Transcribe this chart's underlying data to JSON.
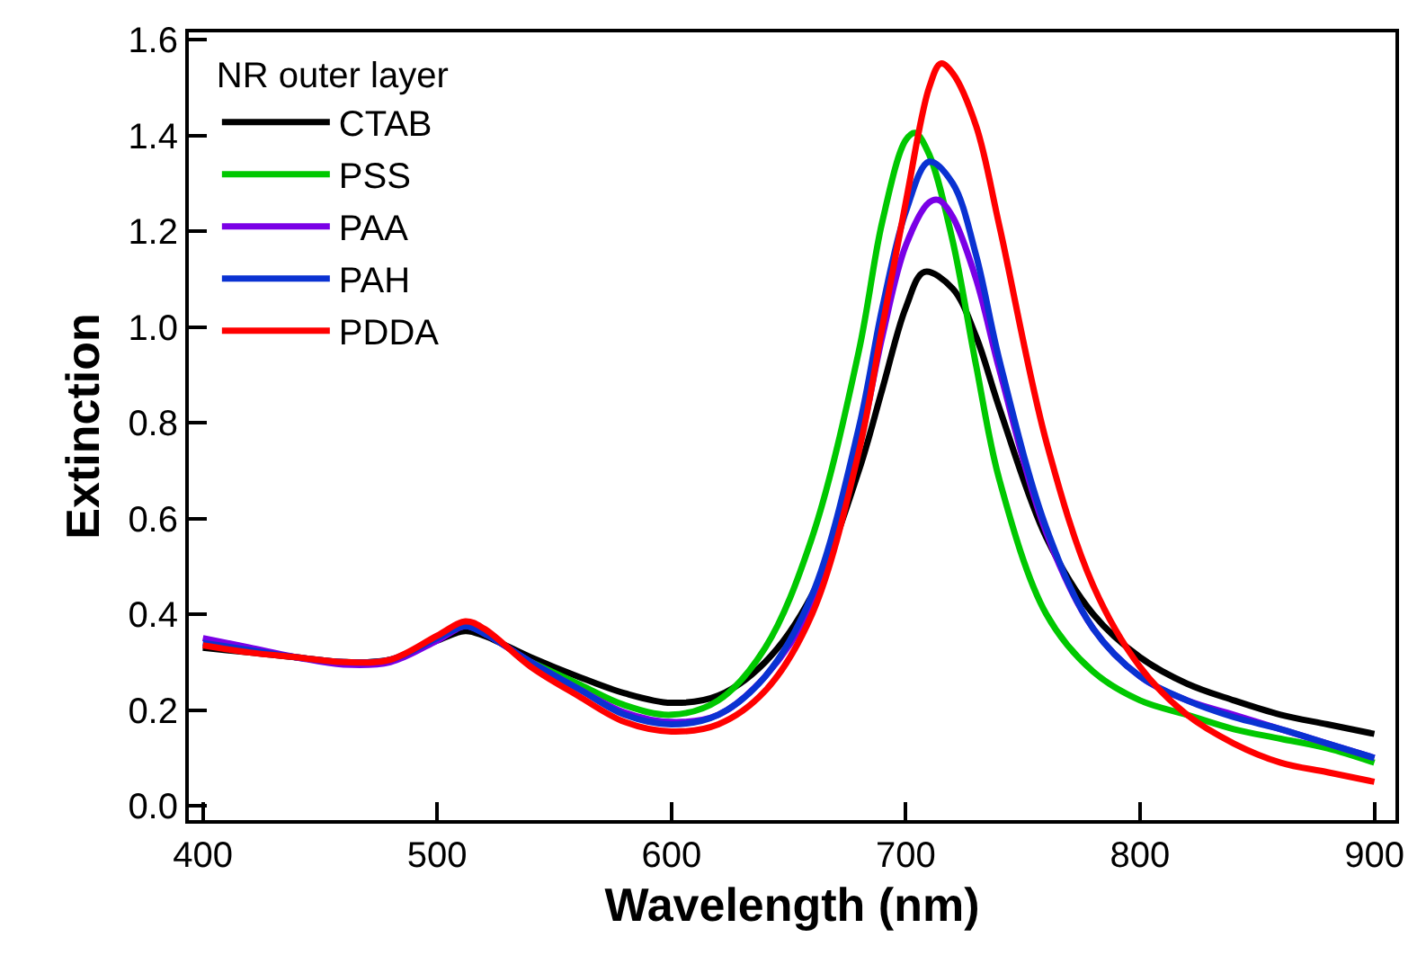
{
  "chart_data": {
    "type": "line",
    "xlabel": "Wavelength (nm)",
    "ylabel": "Extinction",
    "legend_title": "NR outer layer",
    "legend": "top left",
    "marker": "none",
    "line_style": "solid",
    "xlim": [
      394,
      909
    ],
    "xticks": [
      400,
      500,
      600,
      700,
      800,
      900
    ],
    "ylim": [
      -0.03,
      1.615
    ],
    "yticks": [
      {
        "value": 0,
        "label": "0.0"
      },
      0.2,
      0.4,
      0.6,
      0.8,
      {
        "value": 1,
        "label": "1.0"
      },
      1.2,
      1.4,
      1.6
    ],
    "series": [
      {
        "name": "CTAB",
        "color": "#000000",
        "x": [
          400,
          420,
          440,
          460,
          480,
          500,
          512,
          520,
          540,
          560,
          580,
          600,
          620,
          640,
          660,
          680,
          690,
          700,
          708,
          720,
          730,
          740,
          760,
          780,
          800,
          820,
          840,
          860,
          880,
          900
        ],
        "values": [
          0.33,
          0.32,
          0.31,
          0.3,
          0.305,
          0.345,
          0.365,
          0.355,
          0.31,
          0.27,
          0.235,
          0.215,
          0.23,
          0.3,
          0.44,
          0.7,
          0.87,
          1.04,
          1.115,
          1.08,
          0.98,
          0.83,
          0.56,
          0.4,
          0.31,
          0.255,
          0.22,
          0.19,
          0.17,
          0.15
        ]
      },
      {
        "name": "PSS",
        "color": "#00c800",
        "x": [
          540,
          560,
          580,
          600,
          620,
          640,
          660,
          680,
          690,
          700,
          704,
          710,
          720,
          730,
          740,
          760,
          780,
          800,
          820,
          840,
          860,
          880,
          900
        ],
        "values": [
          0.3,
          0.255,
          0.21,
          0.19,
          0.22,
          0.33,
          0.56,
          0.95,
          1.22,
          1.39,
          1.405,
          1.36,
          1.18,
          0.92,
          0.68,
          0.4,
          0.28,
          0.22,
          0.19,
          0.16,
          0.14,
          0.12,
          0.09
        ]
      },
      {
        "name": "PAA",
        "color": "#7a00e6",
        "x": [
          400,
          420,
          440,
          460,
          480,
          500,
          512,
          520,
          540,
          560,
          580,
          600,
          620,
          640,
          660,
          680,
          690,
          700,
          710,
          714,
          720,
          730,
          740,
          760,
          780,
          800,
          820,
          840,
          860,
          880,
          900
        ],
        "values": [
          0.35,
          0.33,
          0.31,
          0.295,
          0.3,
          0.345,
          0.375,
          0.36,
          0.3,
          0.245,
          0.195,
          0.175,
          0.19,
          0.27,
          0.42,
          0.75,
          0.98,
          1.17,
          1.26,
          1.265,
          1.23,
          1.1,
          0.91,
          0.57,
          0.37,
          0.27,
          0.22,
          0.19,
          0.16,
          0.13,
          0.1
        ]
      },
      {
        "name": "PAH",
        "color": "#0a32d2",
        "x": [
          400,
          420,
          440,
          460,
          480,
          500,
          512,
          520,
          540,
          560,
          580,
          600,
          620,
          640,
          660,
          680,
          690,
          700,
          710,
          720,
          730,
          740,
          760,
          780,
          800,
          820,
          840,
          860,
          880,
          900
        ],
        "values": [
          0.34,
          0.325,
          0.31,
          0.3,
          0.305,
          0.35,
          0.375,
          0.36,
          0.3,
          0.245,
          0.19,
          0.17,
          0.19,
          0.27,
          0.44,
          0.79,
          1.04,
          1.24,
          1.345,
          1.3,
          1.15,
          0.93,
          0.58,
          0.37,
          0.27,
          0.22,
          0.185,
          0.16,
          0.13,
          0.1
        ]
      },
      {
        "name": "PDDA",
        "color": "#ff0000",
        "x": [
          400,
          420,
          440,
          460,
          480,
          500,
          512,
          520,
          540,
          560,
          580,
          600,
          620,
          640,
          660,
          680,
          690,
          700,
          710,
          715,
          720,
          730,
          740,
          760,
          780,
          800,
          820,
          840,
          860,
          880,
          900
        ],
        "values": [
          0.335,
          0.32,
          0.31,
          0.3,
          0.305,
          0.355,
          0.385,
          0.37,
          0.29,
          0.23,
          0.175,
          0.155,
          0.17,
          0.24,
          0.4,
          0.74,
          1.0,
          1.26,
          1.5,
          1.55,
          1.53,
          1.42,
          1.21,
          0.76,
          0.46,
          0.29,
          0.19,
          0.13,
          0.09,
          0.07,
          0.05
        ]
      }
    ]
  }
}
